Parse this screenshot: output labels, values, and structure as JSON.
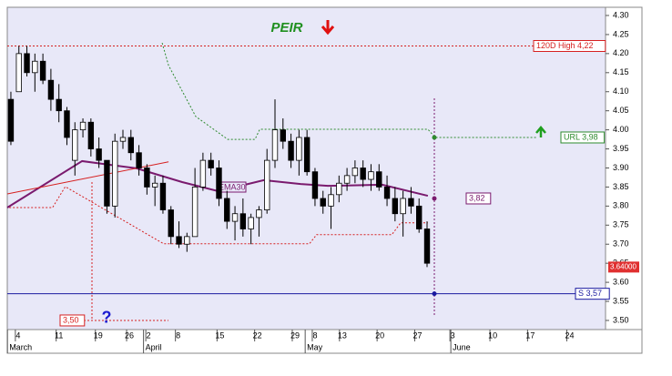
{
  "chart_data": {
    "type": "candlestick",
    "title": "PEIR",
    "open": [
      4.08,
      4.1,
      4.2,
      4.15,
      4.18,
      4.13,
      4.08,
      4.05,
      3.92,
      4.0,
      4.02,
      3.95,
      3.92,
      3.8,
      3.97,
      3.98,
      3.94,
      3.9,
      3.85,
      3.86,
      3.79,
      3.72,
      3.7,
      3.72,
      3.85,
      3.92,
      3.9,
      3.82,
      3.76,
      3.78,
      3.74,
      3.77,
      3.79,
      3.92,
      4.0,
      3.97,
      3.92,
      3.98,
      3.89,
      3.82,
      3.8,
      3.83,
      3.86,
      3.88,
      3.9,
      3.87,
      3.89,
      3.85,
      3.82,
      3.78,
      3.82,
      3.8,
      3.74
    ],
    "high": [
      4.1,
      4.22,
      4.22,
      4.2,
      4.2,
      4.16,
      4.12,
      4.06,
      4.02,
      4.03,
      4.03,
      3.98,
      3.92,
      3.99,
      4.0,
      4.0,
      3.96,
      3.91,
      3.88,
      3.88,
      3.8,
      3.76,
      3.73,
      3.9,
      3.94,
      3.94,
      3.92,
      3.84,
      3.8,
      3.82,
      3.78,
      3.8,
      3.95,
      4.08,
      4.03,
      3.99,
      4.0,
      4.0,
      3.9,
      3.84,
      3.85,
      3.88,
      3.9,
      3.92,
      3.92,
      3.91,
      3.91,
      3.88,
      3.85,
      3.84,
      3.85,
      3.82,
      3.76
    ],
    "low": [
      3.96,
      4.1,
      4.14,
      4.1,
      4.12,
      4.05,
      4.02,
      3.96,
      3.88,
      3.98,
      3.93,
      3.9,
      3.78,
      3.77,
      3.95,
      3.92,
      3.88,
      3.83,
      3.8,
      3.78,
      3.7,
      3.69,
      3.68,
      3.72,
      3.84,
      3.88,
      3.8,
      3.74,
      3.71,
      3.72,
      3.7,
      3.72,
      3.78,
      3.9,
      3.95,
      3.9,
      3.88,
      3.88,
      3.8,
      3.78,
      3.74,
      3.81,
      3.84,
      3.86,
      3.85,
      3.84,
      3.84,
      3.8,
      3.76,
      3.72,
      3.78,
      3.73,
      3.64
    ],
    "close": [
      3.97,
      4.2,
      4.15,
      4.18,
      4.13,
      4.08,
      4.05,
      3.98,
      4.0,
      4.02,
      3.95,
      3.92,
      3.8,
      3.97,
      3.98,
      3.94,
      3.9,
      3.85,
      3.86,
      3.79,
      3.72,
      3.7,
      3.72,
      3.85,
      3.92,
      3.9,
      3.82,
      3.76,
      3.78,
      3.74,
      3.77,
      3.79,
      3.92,
      4.0,
      3.97,
      3.92,
      3.98,
      3.89,
      3.82,
      3.8,
      3.83,
      3.86,
      3.88,
      3.9,
      3.87,
      3.89,
      3.85,
      3.82,
      3.78,
      3.82,
      3.8,
      3.74,
      3.65
    ],
    "xlim": [
      -0.45,
      74.3
    ],
    "xticks": [
      {
        "value": 0.9,
        "label": "4"
      },
      {
        "value": 6,
        "label": "11"
      },
      {
        "value": 10.9,
        "label": "19"
      },
      {
        "value": 14.8,
        "label": "26"
      },
      {
        "value": 17.2,
        "label": "2"
      },
      {
        "value": 20.9,
        "label": "8"
      },
      {
        "value": 26.1,
        "label": "15"
      },
      {
        "value": 30.8,
        "label": "22"
      },
      {
        "value": 35.5,
        "label": "29"
      },
      {
        "value": 38,
        "label": "8"
      },
      {
        "value": 41.4,
        "label": "13"
      },
      {
        "value": 46.1,
        "label": "20"
      },
      {
        "value": 50.8,
        "label": "27"
      },
      {
        "value": 55.2,
        "label": "3"
      },
      {
        "value": 60.2,
        "label": "10"
      },
      {
        "value": 64.9,
        "label": "17"
      },
      {
        "value": 69.8,
        "label": "24"
      }
    ],
    "month_ticks": [
      {
        "value": -0.2,
        "label": "March"
      },
      {
        "value": 16.8,
        "label": "April"
      },
      {
        "value": 37,
        "label": "May"
      },
      {
        "value": 55.2,
        "label": "June"
      }
    ],
    "ylim": [
      3.445,
      4.3215
    ],
    "yticks": [
      {
        "value": 4.3,
        "label": "4.30"
      },
      {
        "value": 4.25,
        "label": "4.25"
      },
      {
        "value": 4.2,
        "label": "4.20"
      },
      {
        "value": 4.15,
        "label": "4.15"
      },
      {
        "value": 4.1,
        "label": "4.10"
      },
      {
        "value": 4.05,
        "label": "4.05"
      },
      {
        "value": 4.0,
        "label": "4.00"
      },
      {
        "value": 3.95,
        "label": "3.95"
      },
      {
        "value": 3.9,
        "label": "3.90"
      },
      {
        "value": 3.85,
        "label": "3.85"
      },
      {
        "value": 3.8,
        "label": "3.80"
      },
      {
        "value": 3.75,
        "label": "3.75"
      },
      {
        "value": 3.7,
        "label": "3.70"
      },
      {
        "value": 3.65,
        "label": "3.65"
      },
      {
        "value": 3.6,
        "label": "3.60"
      },
      {
        "value": 3.55,
        "label": "3.55"
      },
      {
        "value": 3.5,
        "label": "3.50"
      }
    ],
    "lines": [
      {
        "name": "EMA30",
        "color": "#7a1a6e",
        "x": [
          -0.45,
          8.9,
          15.7,
          21.4,
          25.9,
          31.6,
          36.2,
          39.6,
          46.4,
          52.1
        ],
        "values": [
          3.796,
          3.918,
          3.899,
          3.863,
          3.839,
          3.868,
          3.858,
          3.853,
          3.856,
          3.827
        ]
      },
      {
        "color": "#2e8b2e",
        "x": [
          18.9,
          19.7,
          23.1,
          27.1,
          30.5,
          31.1,
          52.1,
          53,
          65.8
        ],
        "values": [
          4.228,
          4.169,
          4.035,
          3.975,
          3.975,
          4.0015,
          4.0015,
          3.98,
          3.98
        ]
      },
      {
        "color": "#d62020",
        "x": [
          -0.2,
          5.2,
          6.8,
          19.1,
          37.3,
          38.2,
          47.6,
          48.7,
          52.1
        ],
        "values": [
          3.796,
          3.796,
          3.851,
          3.701,
          3.701,
          3.725,
          3.725,
          3.756,
          3.756
        ]
      },
      {
        "color": "#d62020",
        "x": [
          -0.45,
          19.7
        ],
        "values": [
          3.832,
          3.916
        ]
      }
    ],
    "levels": [
      {
        "label": "120D High 4,22",
        "value": 4.22,
        "color": "#d62020"
      },
      {
        "label": "URL 3,98",
        "value": 3.98,
        "color": "#2e8b2e"
      },
      {
        "label": "S 3,57",
        "value": 3.57,
        "color": "#1a1aa0"
      },
      {
        "label": "3,82",
        "value": 3.82,
        "color": "#7a1a6e"
      },
      {
        "label": "3,50",
        "value": 3.5,
        "color": "#d62020"
      }
    ],
    "price_tag": {
      "label": "3.64000",
      "value": 3.64
    },
    "question": "?"
  }
}
